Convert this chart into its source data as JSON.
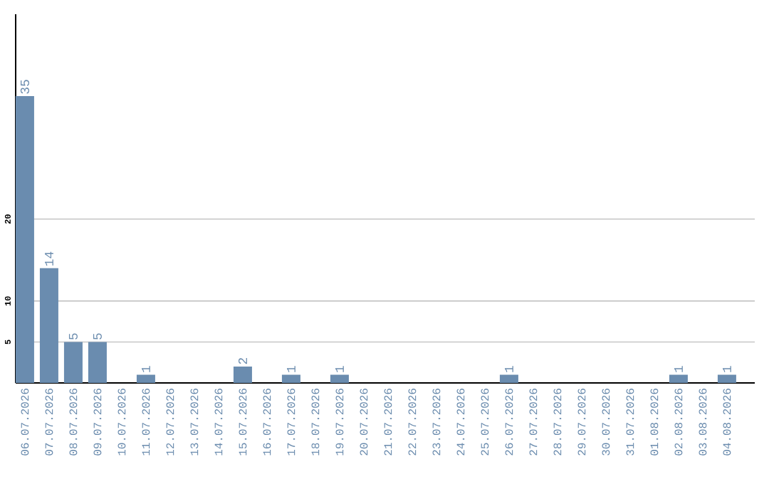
{
  "chart_data": {
    "type": "bar",
    "categories": [
      "06.07.2026",
      "07.07.2026",
      "08.07.2026",
      "09.07.2026",
      "10.07.2026",
      "11.07.2026",
      "12.07.2026",
      "13.07.2026",
      "14.07.2026",
      "15.07.2026",
      "16.07.2026",
      "17.07.2026",
      "18.07.2026",
      "19.07.2026",
      "20.07.2026",
      "21.07.2026",
      "22.07.2026",
      "23.07.2026",
      "24.07.2026",
      "25.07.2026",
      "26.07.2026",
      "27.07.2026",
      "28.07.2026",
      "29.07.2026",
      "30.07.2026",
      "31.07.2026",
      "01.08.2026",
      "02.08.2026",
      "03.08.2026",
      "04.08.2026"
    ],
    "values": [
      35,
      14,
      5,
      5,
      0,
      1,
      0,
      0,
      0,
      2,
      0,
      1,
      0,
      1,
      0,
      0,
      0,
      0,
      0,
      0,
      1,
      0,
      0,
      0,
      0,
      0,
      0,
      1,
      0,
      1
    ],
    "value_labels": [
      "35",
      "14",
      "5",
      "5",
      null,
      "1",
      null,
      null,
      null,
      "2",
      null,
      "1",
      null,
      "1",
      null,
      null,
      null,
      null,
      null,
      null,
      "1",
      null,
      null,
      null,
      null,
      null,
      null,
      "1",
      null,
      "1"
    ],
    "color": "#6a8caf",
    "ylim": [
      0,
      45
    ],
    "yticks": [
      5,
      10,
      20
    ],
    "grid": "y"
  }
}
